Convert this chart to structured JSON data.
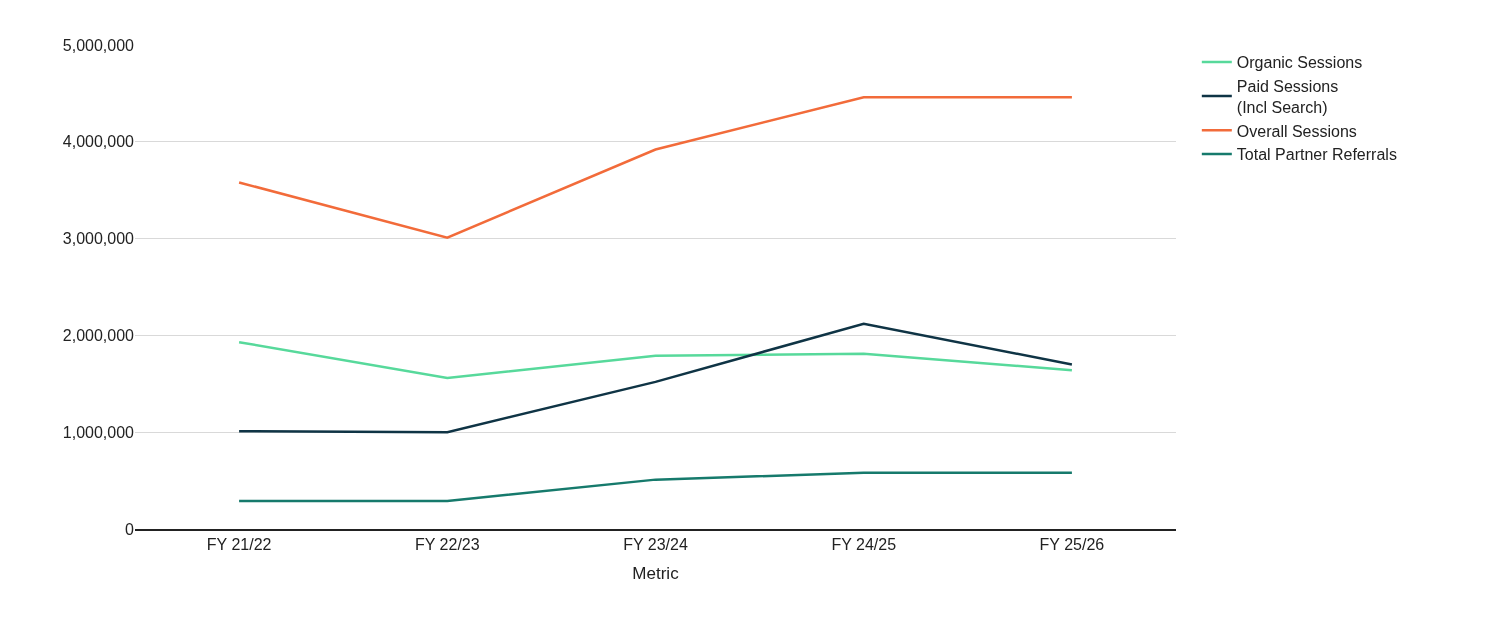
{
  "chart_data": {
    "type": "line",
    "xlabel": "Metric",
    "categories": [
      "FY 21/22",
      "FY 22/23",
      "FY 23/24",
      "FY 24/25",
      "FY 25/26"
    ],
    "series": [
      {
        "name": "Organic Sessions",
        "color": "#57d99b",
        "values": [
          1930000,
          1560000,
          1790000,
          1810000,
          1640000
        ]
      },
      {
        "name": "Paid Sessions\n(Incl Search)",
        "color": "#0f3445",
        "values": [
          1010000,
          1000000,
          1520000,
          2120000,
          1700000
        ]
      },
      {
        "name": "Overall Sessions",
        "color": "#f26b3a",
        "values": [
          3580000,
          3010000,
          3920000,
          4460000,
          4460000
        ]
      },
      {
        "name": "Total Partner Referrals",
        "color": "#167a6c",
        "values": [
          290000,
          290000,
          510000,
          580000,
          580000
        ]
      }
    ],
    "ylim": [
      0,
      5000000
    ],
    "yticks": [
      {
        "value": 0,
        "label": "0"
      },
      {
        "value": 1000000,
        "label": "1,000,000"
      },
      {
        "value": 2000000,
        "label": "2,000,000"
      },
      {
        "value": 3000000,
        "label": "3,000,000"
      },
      {
        "value": 4000000,
        "label": "4,000,000"
      },
      {
        "value": 5000000,
        "label": "5,000,000"
      }
    ],
    "grid": "y",
    "legend": "top right",
    "marker": "none",
    "line_style": "solid"
  }
}
